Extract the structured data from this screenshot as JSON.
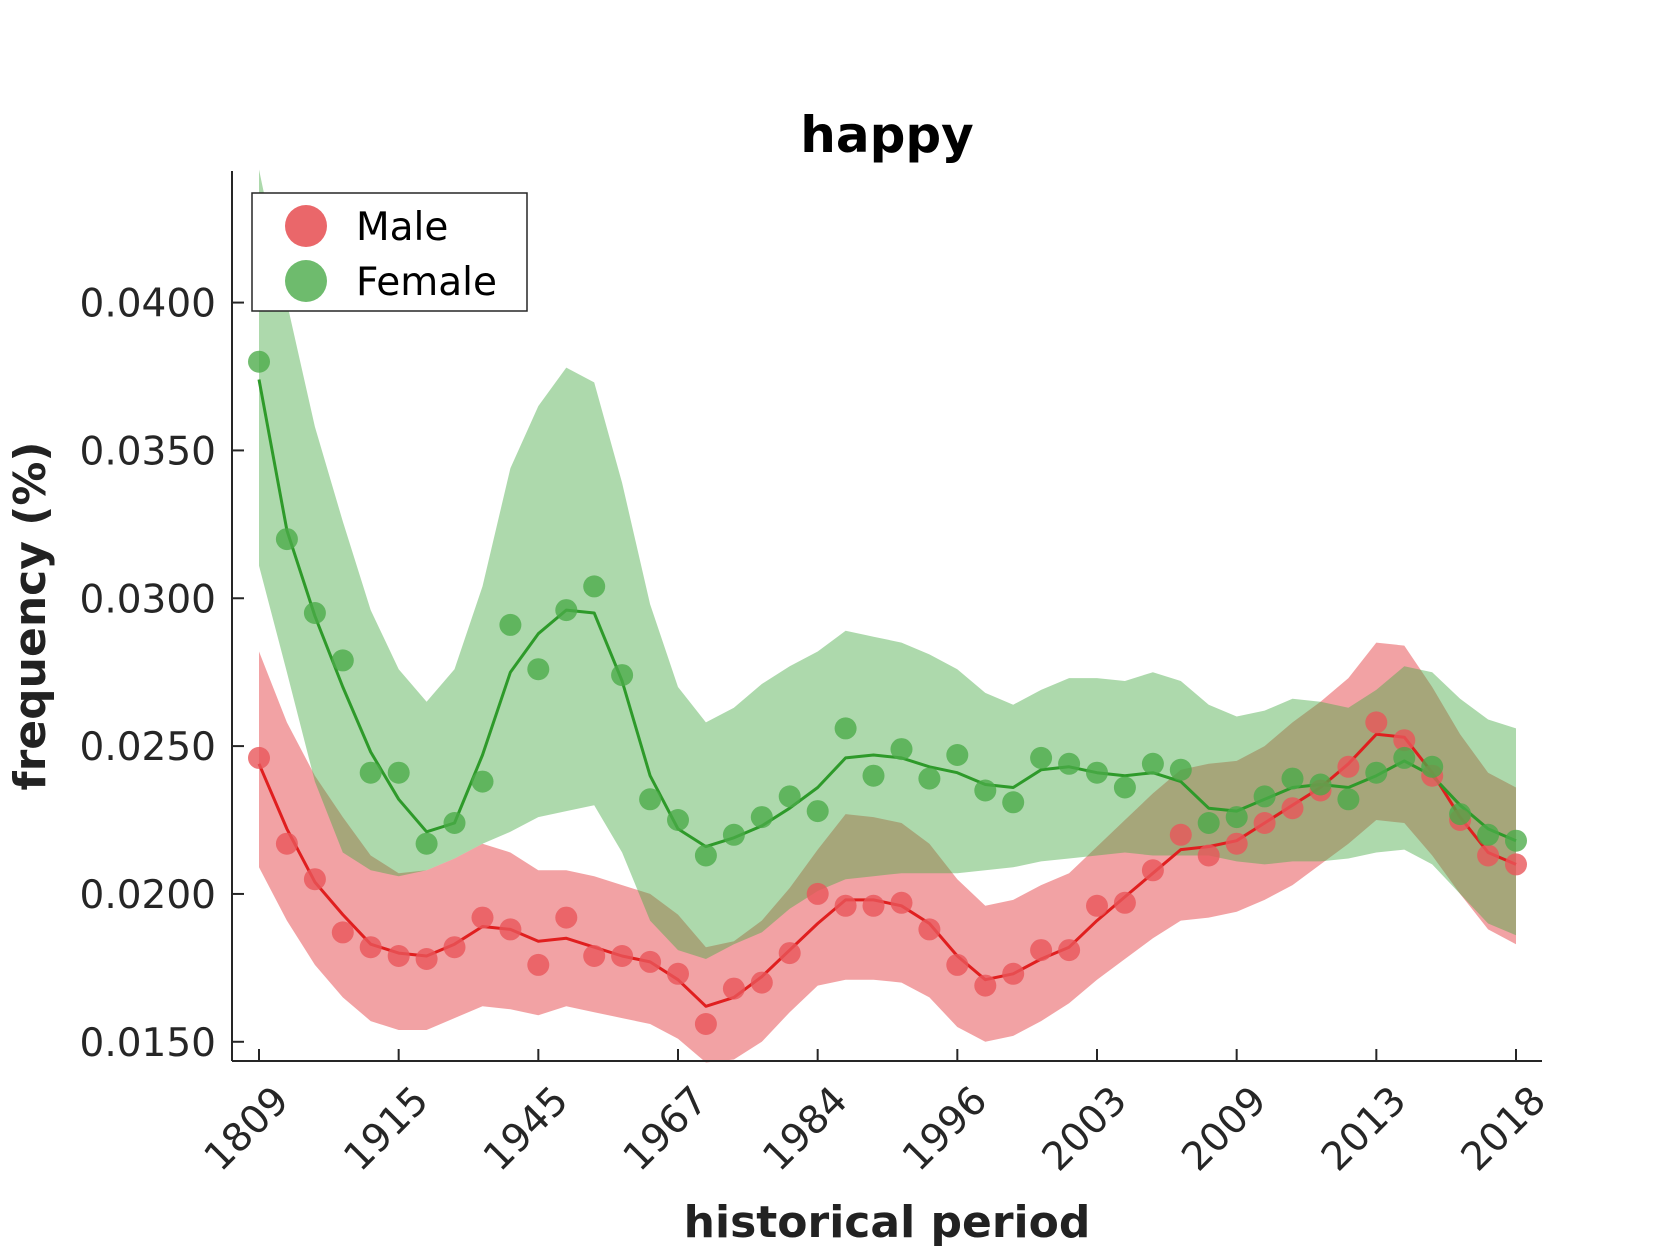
{
  "chart_data": {
    "type": "line",
    "title": "happy",
    "xlabel": "historical period",
    "ylabel": "frequency (%)",
    "x_tick_labels": [
      "1809",
      "1915",
      "1945",
      "1967",
      "1984",
      "1996",
      "2003",
      "2009",
      "2013",
      "2018"
    ],
    "y_ticks": [
      0.015,
      0.02,
      0.025,
      0.03,
      0.035,
      0.04
    ],
    "y_tick_labels": [
      "0.0150",
      "0.0200",
      "0.0250",
      "0.0300",
      "0.0350",
      "0.0400"
    ],
    "ylim": [
      0.01435,
      0.04445
    ],
    "n_periods": 46,
    "grid": false,
    "legend_position": "top-left",
    "series": [
      {
        "name": "Male",
        "color": "#e8565a",
        "line_color": "#e01f1f",
        "points": [
          0.0246,
          0.0217,
          0.0205,
          0.0187,
          0.0182,
          0.0179,
          0.0178,
          0.0182,
          0.0192,
          0.0188,
          0.0176,
          0.0192,
          0.0179,
          0.0179,
          0.0177,
          0.0173,
          0.0156,
          0.0168,
          0.017,
          0.018,
          0.02,
          0.0196,
          0.0196,
          0.0197,
          0.0188,
          0.0176,
          0.0169,
          0.0173,
          0.0181,
          0.0181,
          0.0196,
          0.0197,
          0.0208,
          0.022,
          0.0213,
          0.0217,
          0.0224,
          0.0229,
          0.0235,
          0.0243,
          0.0258,
          0.0252,
          0.024,
          0.0225,
          0.0213,
          0.021
        ],
        "trend": [
          0.0244,
          0.0222,
          0.0204,
          0.0193,
          0.0183,
          0.018,
          0.0179,
          0.0183,
          0.0189,
          0.0188,
          0.0184,
          0.0185,
          0.0182,
          0.0179,
          0.0177,
          0.0171,
          0.0162,
          0.0165,
          0.0172,
          0.0181,
          0.019,
          0.0198,
          0.0198,
          0.0196,
          0.019,
          0.0179,
          0.0171,
          0.0173,
          0.0178,
          0.0182,
          0.0191,
          0.0199,
          0.0207,
          0.0215,
          0.0216,
          0.0218,
          0.0224,
          0.023,
          0.0236,
          0.0244,
          0.0254,
          0.0253,
          0.0241,
          0.0226,
          0.0214,
          0.021
        ],
        "band_upper": [
          0.0282,
          0.0258,
          0.024,
          0.0226,
          0.0213,
          0.0207,
          0.0208,
          0.0212,
          0.0217,
          0.0214,
          0.0208,
          0.0208,
          0.0206,
          0.0203,
          0.02,
          0.0193,
          0.0182,
          0.0184,
          0.0191,
          0.0202,
          0.0215,
          0.0227,
          0.0226,
          0.0224,
          0.0217,
          0.0205,
          0.0196,
          0.0198,
          0.0203,
          0.0207,
          0.0216,
          0.0225,
          0.0234,
          0.0242,
          0.0244,
          0.0245,
          0.025,
          0.0258,
          0.0265,
          0.0273,
          0.0285,
          0.0284,
          0.027,
          0.0254,
          0.0241,
          0.0236
        ],
        "band_lower": [
          0.0209,
          0.0191,
          0.0176,
          0.0165,
          0.0157,
          0.0154,
          0.0154,
          0.0158,
          0.0162,
          0.0161,
          0.0159,
          0.0162,
          0.016,
          0.0158,
          0.0156,
          0.0151,
          0.0143,
          0.0144,
          0.015,
          0.016,
          0.0169,
          0.0171,
          0.0171,
          0.017,
          0.0165,
          0.0155,
          0.015,
          0.0152,
          0.0157,
          0.0163,
          0.0171,
          0.0178,
          0.0185,
          0.0191,
          0.0192,
          0.0194,
          0.0198,
          0.0203,
          0.021,
          0.0217,
          0.0225,
          0.0224,
          0.0213,
          0.02,
          0.0188,
          0.0183
        ]
      },
      {
        "name": "Female",
        "color": "#4aaa48",
        "line_color": "#2e9a2a",
        "points": [
          0.038,
          0.032,
          0.0295,
          0.0279,
          0.0241,
          0.0241,
          0.0217,
          0.0224,
          0.0238,
          0.0291,
          0.0276,
          0.0296,
          0.0304,
          0.0274,
          0.0232,
          0.0225,
          0.0213,
          0.022,
          0.0226,
          0.0233,
          0.0228,
          0.0256,
          0.024,
          0.0249,
          0.0239,
          0.0247,
          0.0235,
          0.0231,
          0.0246,
          0.0244,
          0.0241,
          0.0236,
          0.0244,
          0.0242,
          0.0224,
          0.0226,
          0.0233,
          0.0239,
          0.0237,
          0.0232,
          0.0241,
          0.0246,
          0.0243,
          0.0227,
          0.022,
          0.0218
        ],
        "trend": [
          0.0374,
          0.0323,
          0.0294,
          0.027,
          0.0248,
          0.0232,
          0.0221,
          0.0224,
          0.0247,
          0.0275,
          0.0288,
          0.0296,
          0.0295,
          0.0272,
          0.024,
          0.0222,
          0.0216,
          0.0219,
          0.0223,
          0.0229,
          0.0236,
          0.0246,
          0.0247,
          0.0246,
          0.0243,
          0.0241,
          0.0237,
          0.0236,
          0.0242,
          0.0243,
          0.0241,
          0.024,
          0.0241,
          0.0238,
          0.0229,
          0.0228,
          0.0232,
          0.0236,
          0.0237,
          0.0236,
          0.024,
          0.0245,
          0.024,
          0.023,
          0.0222,
          0.0218
        ],
        "band_upper": [
          0.0445,
          0.04,
          0.0358,
          0.0326,
          0.0296,
          0.0276,
          0.0265,
          0.0276,
          0.0304,
          0.0344,
          0.0365,
          0.0378,
          0.0373,
          0.0339,
          0.0298,
          0.027,
          0.0258,
          0.0263,
          0.0271,
          0.0277,
          0.0282,
          0.0289,
          0.0287,
          0.0285,
          0.0281,
          0.0276,
          0.0268,
          0.0264,
          0.0269,
          0.0273,
          0.0273,
          0.0272,
          0.0275,
          0.0272,
          0.0264,
          0.026,
          0.0262,
          0.0266,
          0.0265,
          0.0263,
          0.0269,
          0.0277,
          0.0275,
          0.0266,
          0.0259,
          0.0256
        ],
        "band_lower": [
          0.0311,
          0.0275,
          0.0238,
          0.0214,
          0.0208,
          0.0206,
          0.0208,
          0.0212,
          0.0217,
          0.0221,
          0.0226,
          0.0228,
          0.023,
          0.0214,
          0.0191,
          0.0181,
          0.0178,
          0.0183,
          0.0187,
          0.0195,
          0.0201,
          0.0205,
          0.0206,
          0.0207,
          0.0207,
          0.0207,
          0.0208,
          0.0209,
          0.0211,
          0.0212,
          0.0213,
          0.0214,
          0.0213,
          0.0213,
          0.0213,
          0.0211,
          0.021,
          0.0211,
          0.0211,
          0.0212,
          0.0214,
          0.0215,
          0.021,
          0.02,
          0.019,
          0.0186
        ]
      }
    ]
  }
}
